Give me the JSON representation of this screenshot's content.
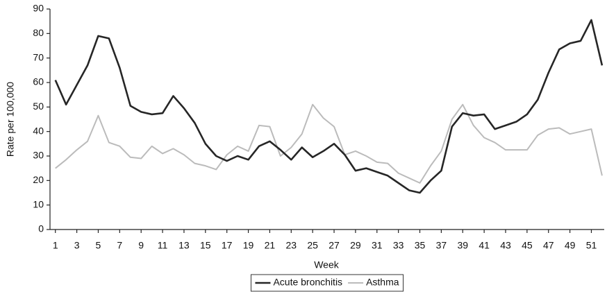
{
  "chart_data": {
    "type": "line",
    "x_label": "Week",
    "y_label": "Rate per 100,000",
    "x": [
      1,
      2,
      3,
      4,
      5,
      6,
      7,
      8,
      9,
      10,
      11,
      12,
      13,
      14,
      15,
      16,
      17,
      18,
      19,
      20,
      21,
      22,
      23,
      24,
      25,
      26,
      27,
      28,
      29,
      30,
      31,
      32,
      33,
      34,
      35,
      36,
      37,
      38,
      39,
      40,
      41,
      42,
      43,
      44,
      45,
      46,
      47,
      48,
      49,
      50,
      51,
      52
    ],
    "xlim": [
      0.5,
      52.2
    ],
    "xticks": [
      1,
      3,
      5,
      7,
      9,
      11,
      13,
      15,
      17,
      19,
      21,
      23,
      25,
      27,
      29,
      31,
      33,
      35,
      37,
      39,
      41,
      43,
      45,
      47,
      49,
      51
    ],
    "ylim": [
      0,
      90
    ],
    "yticks": [
      0,
      10,
      20,
      30,
      40,
      50,
      60,
      70,
      80,
      90
    ],
    "grid": false,
    "legend": "bottom",
    "series": [
      {
        "name": "Acute bronchitis",
        "color": "#262626",
        "values": [
          61,
          51,
          59,
          67,
          79,
          78,
          66,
          50.5,
          48,
          47,
          47.5,
          54.5,
          49.5,
          43.5,
          35,
          30,
          28,
          30,
          28.5,
          34,
          36,
          32.5,
          28.5,
          33.5,
          29.5,
          32,
          35,
          30.5,
          24,
          25,
          23.5,
          22,
          19,
          16,
          15,
          20,
          24,
          42,
          47.5,
          46.5,
          47,
          41,
          42.5,
          44,
          47,
          53,
          64,
          73.5,
          76,
          77,
          85.5,
          67
        ]
      },
      {
        "name": "Asthma",
        "color": "#bbbbbb",
        "values": [
          25,
          28.5,
          32.5,
          36,
          46.5,
          35.5,
          34,
          29.5,
          29,
          34,
          31,
          33,
          30.5,
          27,
          26,
          24.5,
          30.5,
          34,
          32,
          42.5,
          42,
          30,
          33.5,
          39,
          51,
          45.5,
          42,
          30.5,
          32,
          30,
          27.5,
          27,
          23,
          21,
          19,
          26,
          32,
          45,
          51,
          42.5,
          37.5,
          35.5,
          32.5,
          32.5,
          32.5,
          38.5,
          41,
          41.5,
          39,
          40,
          41,
          22
        ]
      }
    ]
  }
}
